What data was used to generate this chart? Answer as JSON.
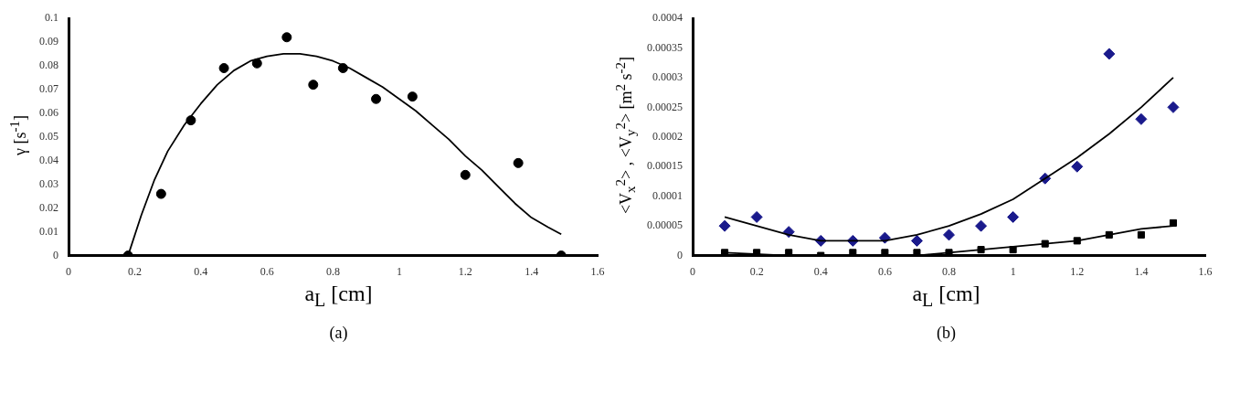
{
  "chart_data": [
    {
      "type": "scatter",
      "xlabel": "a$_{L}$ [cm]",
      "ylabel": "γ [s$^{-1}$]",
      "annotations": [
        "(a)"
      ],
      "xlim": [
        0,
        1.6
      ],
      "ylim": [
        0,
        0.1
      ],
      "xticks": [
        0,
        0.2,
        0.4,
        0.6,
        0.8,
        1,
        1.2,
        1.4,
        1.6
      ],
      "yticks": [
        0,
        0.01,
        0.02,
        0.03,
        0.04,
        0.05,
        0.06,
        0.07,
        0.08,
        0.09,
        0.1
      ],
      "grid": false,
      "legend": false,
      "series": [
        {
          "type": "scatter",
          "marker": "circle",
          "color": "#000000",
          "x": [
            0.18,
            0.28,
            0.37,
            0.47,
            0.57,
            0.66,
            0.74,
            0.83,
            0.93,
            1.04,
            1.2,
            1.36,
            1.49
          ],
          "values": [
            0,
            0.026,
            0.057,
            0.079,
            0.081,
            0.092,
            0.072,
            0.079,
            0.066,
            0.067,
            0.034,
            0.039,
            0
          ]
        },
        {
          "type": "line",
          "marker": "none",
          "line_style": "solid",
          "color": "#000000",
          "x": [
            0.18,
            0.22,
            0.26,
            0.3,
            0.35,
            0.4,
            0.45,
            0.5,
            0.55,
            0.6,
            0.65,
            0.7,
            0.75,
            0.8,
            0.85,
            0.9,
            0.95,
            1,
            1.05,
            1.1,
            1.15,
            1.2,
            1.25,
            1.3,
            1.35,
            1.4,
            1.45,
            1.49
          ],
          "values": [
            0,
            0.017,
            0.032,
            0.044,
            0.055,
            0.064,
            0.072,
            0.078,
            0.082,
            0.084,
            0.085,
            0.085,
            0.084,
            0.082,
            0.079,
            0.075,
            0.071,
            0.066,
            0.061,
            0.055,
            0.049,
            0.042,
            0.036,
            0.029,
            0.022,
            0.016,
            0.012,
            0.009
          ]
        }
      ]
    },
    {
      "type": "scatter",
      "xlabel": "a$_{L}$ [cm]",
      "ylabel": "<V$_{x}$$^{2}$> , <V$_{y}$$^{2}$>  [m$^{2}$ s$^{-2}$]",
      "annotations": [
        "(b)"
      ],
      "xlim": [
        0,
        1.6
      ],
      "ylim": [
        0,
        0.0004
      ],
      "xticks": [
        0,
        0.2,
        0.4,
        0.6,
        0.8,
        1,
        1.2,
        1.4,
        1.6
      ],
      "yticks": [
        0,
        {
          "value": 5e-05,
          "label": "0.00005"
        },
        0.0001,
        0.00015,
        0.0002,
        0.00025,
        0.0003,
        0.00035,
        0.0004
      ],
      "grid": false,
      "legend": false,
      "series": [
        {
          "type": "scatter",
          "marker": "diamond",
          "color": "#1a1a8c",
          "x": [
            0.1,
            0.2,
            0.3,
            0.4,
            0.5,
            0.6,
            0.7,
            0.8,
            0.9,
            1,
            1.1,
            1.2,
            1.3,
            1.4,
            1.5
          ],
          "values": [
            5e-05,
            6.5e-05,
            4e-05,
            2.5e-05,
            2.5e-05,
            3e-05,
            2.5e-05,
            3.5e-05,
            5e-05,
            6.5e-05,
            0.00013,
            0.00015,
            0.00034,
            0.00023,
            0.00025
          ]
        },
        {
          "type": "scatter",
          "marker": "square",
          "color": "#000000",
          "x": [
            0.1,
            0.2,
            0.3,
            0.4,
            0.5,
            0.6,
            0.7,
            0.8,
            0.9,
            1,
            1.1,
            1.2,
            1.3,
            1.4,
            1.5
          ],
          "values": [
            5e-06,
            5e-06,
            5e-06,
            0,
            5e-06,
            5e-06,
            5e-06,
            5e-06,
            1e-05,
            1e-05,
            2e-05,
            2.5e-05,
            3.5e-05,
            3.5e-05,
            5.5e-05
          ]
        },
        {
          "type": "line",
          "marker": "none",
          "line_style": "solid",
          "color": "#000000",
          "x": [
            0.1,
            0.2,
            0.3,
            0.4,
            0.5,
            0.6,
            0.7,
            0.8,
            0.9,
            1,
            1.1,
            1.2,
            1.3,
            1.4,
            1.5
          ],
          "values": [
            6.5e-05,
            5e-05,
            3.5e-05,
            2.5e-05,
            2.5e-05,
            2.5e-05,
            3.5e-05,
            5e-05,
            7e-05,
            9.5e-05,
            0.00013,
            0.000165,
            0.000205,
            0.00025,
            0.0003
          ]
        },
        {
          "type": "line",
          "marker": "none",
          "line_style": "solid",
          "color": "#000000",
          "x": [
            0.1,
            0.3,
            0.5,
            0.7,
            0.8,
            0.9,
            1,
            1.1,
            1.2,
            1.3,
            1.4,
            1.5
          ],
          "values": [
            5e-06,
            0,
            0,
            0,
            5e-06,
            1e-05,
            1.5e-05,
            2e-05,
            2.5e-05,
            3.5e-05,
            4.5e-05,
            5e-05
          ]
        }
      ]
    }
  ]
}
